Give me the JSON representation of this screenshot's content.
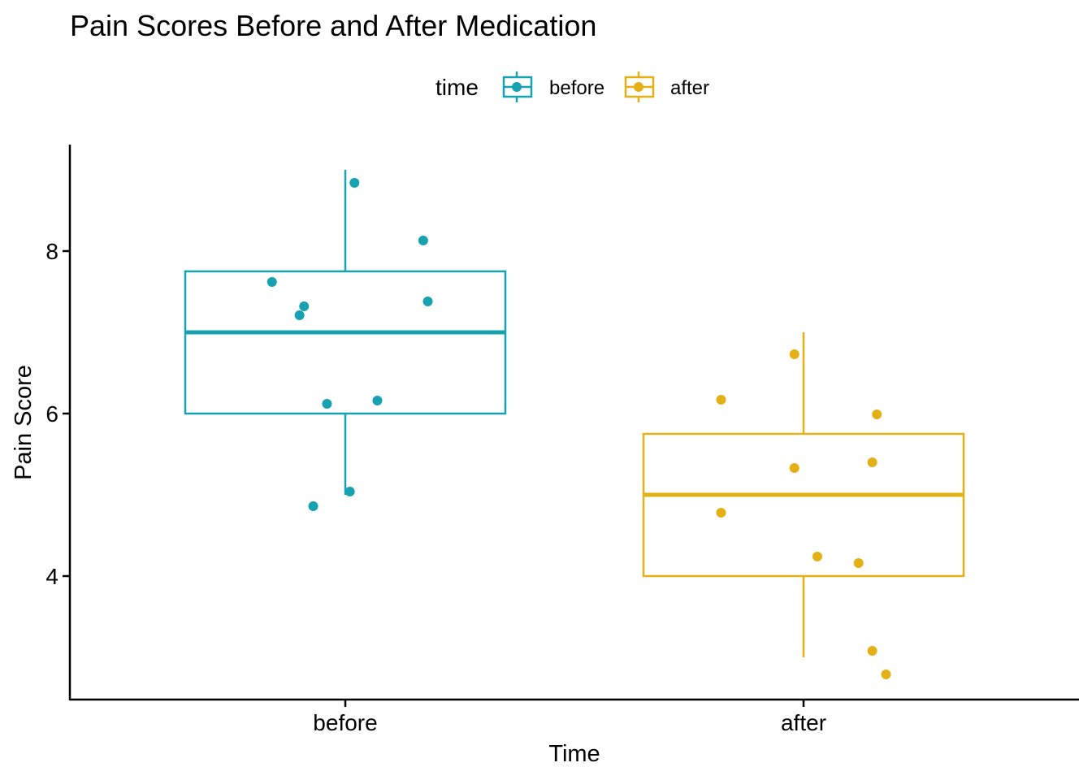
{
  "chart_data": {
    "type": "boxplot",
    "title": "Pain Scores Before and After Medication",
    "xlabel": "Time",
    "ylabel": "Pain Score",
    "ylim": [
      2.5,
      9.3
    ],
    "yticks": [
      4,
      6,
      8
    ],
    "categories": [
      "before",
      "after"
    ],
    "grid": false,
    "legend": {
      "title": "time",
      "position": "top",
      "entries": [
        "before",
        "after"
      ]
    },
    "series": [
      {
        "name": "before",
        "color": "#17A2B1",
        "box": {
          "min": 5.0,
          "q1": 6.0,
          "median": 7.0,
          "q3": 7.75,
          "max": 9.0
        },
        "points": [
          {
            "jitter": -0.16,
            "y": 7.62
          },
          {
            "jitter": -0.1,
            "y": 7.21
          },
          {
            "jitter": -0.09,
            "y": 7.32
          },
          {
            "jitter": 0.02,
            "y": 8.84
          },
          {
            "jitter": 0.17,
            "y": 8.13
          },
          {
            "jitter": 0.18,
            "y": 7.38
          },
          {
            "jitter": 0.07,
            "y": 6.16
          },
          {
            "jitter": -0.04,
            "y": 6.12
          },
          {
            "jitter": 0.01,
            "y": 5.04
          },
          {
            "jitter": -0.07,
            "y": 4.86
          }
        ]
      },
      {
        "name": "after",
        "color": "#E3B016",
        "box": {
          "min": 3.0,
          "q1": 4.0,
          "median": 5.0,
          "q3": 5.75,
          "max": 7.0
        },
        "points": [
          {
            "jitter": -0.18,
            "y": 6.17
          },
          {
            "jitter": -0.02,
            "y": 6.73
          },
          {
            "jitter": 0.16,
            "y": 5.99
          },
          {
            "jitter": -0.02,
            "y": 5.33
          },
          {
            "jitter": 0.15,
            "y": 5.4
          },
          {
            "jitter": -0.18,
            "y": 4.78
          },
          {
            "jitter": 0.03,
            "y": 4.24
          },
          {
            "jitter": 0.12,
            "y": 4.16
          },
          {
            "jitter": 0.15,
            "y": 3.08
          },
          {
            "jitter": 0.18,
            "y": 2.79
          }
        ]
      }
    ]
  }
}
